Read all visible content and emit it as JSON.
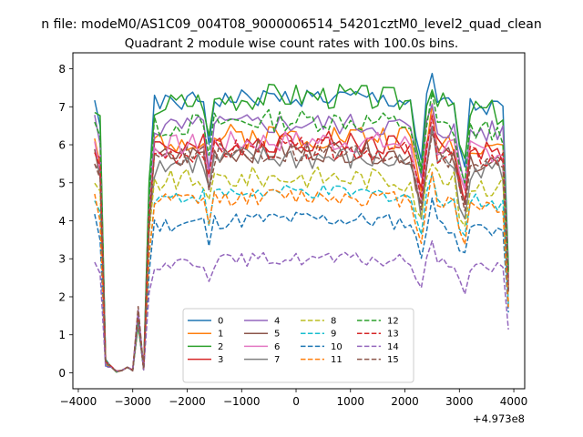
{
  "suptitle": "n file: modeM0/AS1C09_004T08_9000006514_54201cztM0_level2_quad_clean",
  "chart_data": {
    "type": "line",
    "title": "Quadrant 2 module wise count rates with 100.0s bins.",
    "xlabel": "",
    "ylabel": "",
    "x_offset_label": "+4.973e8",
    "xlim": [
      -4100,
      4200
    ],
    "ylim": [
      -0.42,
      8.42
    ],
    "xticks": [
      -4000,
      -3000,
      -2000,
      -1000,
      0,
      1000,
      2000,
      3000,
      4000
    ],
    "xtick_labels": [
      "−4000",
      "−3000",
      "−2000",
      "−1000",
      "0",
      "1000",
      "2000",
      "3000",
      "4000"
    ],
    "yticks": [
      0,
      1,
      2,
      3,
      4,
      5,
      6,
      7,
      8
    ],
    "ytick_labels": [
      "0",
      "1",
      "2",
      "3",
      "4",
      "5",
      "6",
      "7",
      "8"
    ],
    "grid": false,
    "legend": {
      "placement": "lower-center",
      "columns": 4
    },
    "x": [
      -3700,
      -3600,
      -3500,
      -3400,
      -3300,
      -3200,
      -3100,
      -3000,
      -2900,
      -2800,
      -2700,
      -2600,
      -2500,
      -2400,
      -2300,
      -2200,
      -2100,
      -2000,
      -1900,
      -1800,
      -1700,
      -1600,
      -1500,
      -1400,
      -1300,
      -1200,
      -1100,
      -1000,
      -900,
      -800,
      -700,
      -600,
      -500,
      -400,
      -300,
      -200,
      -100,
      0,
      100,
      200,
      300,
      400,
      500,
      600,
      700,
      800,
      900,
      1000,
      1100,
      1200,
      1300,
      1400,
      1500,
      1600,
      1700,
      1800,
      1900,
      2000,
      2100,
      2200,
      2300,
      2400,
      2500,
      2600,
      2700,
      2800,
      2900,
      3000,
      3100,
      3200,
      3300,
      3400,
      3500,
      3600,
      3700,
      3800,
      3900
    ],
    "dip_profile": [
      1,
      0.95,
      0.05,
      0,
      0,
      0.02,
      0,
      0.25,
      0,
      0.03,
      0.7,
      1,
      1,
      1,
      1,
      1,
      1,
      1,
      1,
      1,
      1,
      0.85,
      1,
      1,
      1,
      1,
      1,
      1,
      1,
      1,
      1,
      1,
      1,
      1,
      1,
      1,
      1,
      1,
      1,
      1,
      1,
      1,
      1,
      1,
      1,
      1,
      1,
      1,
      1,
      1,
      1,
      1,
      1,
      1,
      1,
      1,
      1,
      1,
      1,
      0.88,
      0.78,
      1,
      1,
      1,
      1,
      1,
      1,
      0.85,
      0.78,
      1,
      1,
      1,
      1,
      1,
      1,
      1,
      0.4
    ],
    "series": [
      {
        "name": "0",
        "color": "#1f77b4",
        "dash": "solid",
        "base": 6.9,
        "trend": 0.35,
        "amp": 0.25,
        "seed": 1
      },
      {
        "name": "1",
        "color": "#ff7f0e",
        "dash": "solid",
        "base": 6.0,
        "trend": 0.25,
        "amp": 0.35,
        "seed": 2
      },
      {
        "name": "2",
        "color": "#2ca02c",
        "dash": "solid",
        "base": 6.8,
        "trend": 0.5,
        "amp": 0.35,
        "seed": 3
      },
      {
        "name": "3",
        "color": "#d62728",
        "dash": "solid",
        "base": 5.8,
        "trend": 0.3,
        "amp": 0.3,
        "seed": 4
      },
      {
        "name": "4",
        "color": "#9467bd",
        "dash": "solid",
        "base": 6.3,
        "trend": 0.25,
        "amp": 0.3,
        "seed": 5
      },
      {
        "name": "5",
        "color": "#8c564b",
        "dash": "solid",
        "base": 5.5,
        "trend": 0.35,
        "amp": 0.3,
        "seed": 6
      },
      {
        "name": "6",
        "color": "#e377c2",
        "dash": "solid",
        "base": 5.8,
        "trend": 0.3,
        "amp": 0.3,
        "seed": 7
      },
      {
        "name": "7",
        "color": "#7f7f7f",
        "dash": "solid",
        "base": 5.3,
        "trend": 0.35,
        "amp": 0.35,
        "seed": 8
      },
      {
        "name": "8",
        "color": "#bcbd22",
        "dash": "dash",
        "base": 4.9,
        "trend": 0.25,
        "amp": 0.3,
        "seed": 9
      },
      {
        "name": "9",
        "color": "#17becf",
        "dash": "dash",
        "base": 4.45,
        "trend": 0.3,
        "amp": 0.2,
        "seed": 10
      },
      {
        "name": "10",
        "color": "#1f77b4",
        "dash": "dash",
        "base": 3.75,
        "trend": 0.3,
        "amp": 0.22,
        "seed": 11
      },
      {
        "name": "11",
        "color": "#ff7f0e",
        "dash": "dash",
        "base": 4.35,
        "trend": 0.3,
        "amp": 0.22,
        "seed": 12
      },
      {
        "name": "12",
        "color": "#2ca02c",
        "dash": "dash",
        "base": 6.3,
        "trend": 0.35,
        "amp": 0.3,
        "seed": 13
      },
      {
        "name": "13",
        "color": "#d62728",
        "dash": "dash",
        "base": 5.6,
        "trend": 0.3,
        "amp": 0.3,
        "seed": 14
      },
      {
        "name": "14",
        "color": "#9467bd",
        "dash": "dash",
        "base": 2.75,
        "trend": 0.25,
        "amp": 0.18,
        "seed": 15
      },
      {
        "name": "15",
        "color": "#8c564b",
        "dash": "dash",
        "base": 5.5,
        "trend": 0.3,
        "amp": 0.3,
        "seed": 16
      }
    ]
  }
}
